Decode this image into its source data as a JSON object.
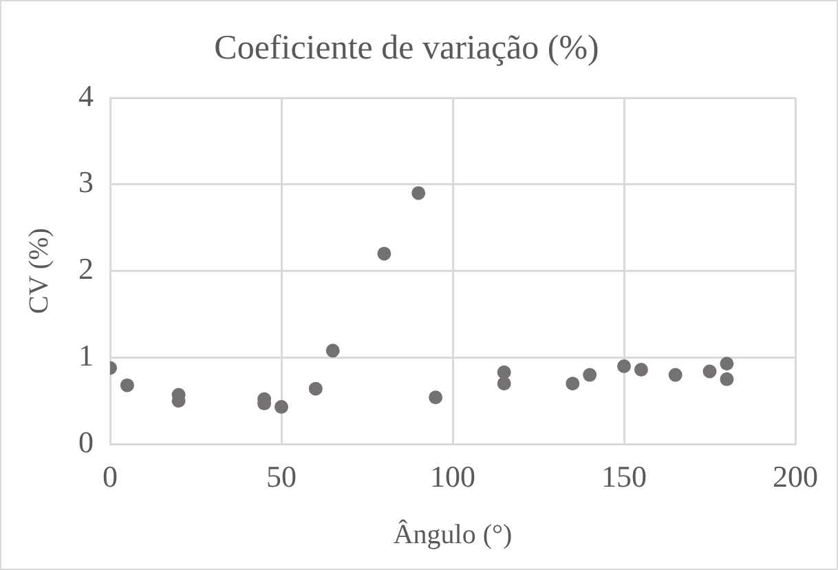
{
  "chart_data": {
    "type": "scatter",
    "title": "Coeficiente de variação (%)",
    "xlabel": "Ângulo (°)",
    "ylabel": "CV (%)",
    "x": [
      0,
      5,
      20,
      20,
      45,
      45,
      50,
      60,
      65,
      80,
      90,
      95,
      115,
      115,
      135,
      140,
      150,
      155,
      165,
      175,
      180,
      180
    ],
    "series": [
      {
        "color": "#767171",
        "values": [
          0.88,
          0.68,
          0.57,
          0.5,
          0.52,
          0.47,
          0.43,
          0.64,
          1.08,
          2.2,
          2.9,
          0.54,
          0.83,
          0.7,
          0.7,
          0.8,
          0.9,
          0.86,
          0.8,
          0.84,
          0.93,
          0.75
        ]
      }
    ],
    "xlim": [
      0,
      200
    ],
    "xticks": [
      0,
      50,
      100,
      150,
      200
    ],
    "ylim": [
      0,
      4
    ],
    "yticks": [
      0,
      1,
      2,
      3,
      4
    ],
    "grid": true,
    "legend": false,
    "marker": "circle"
  }
}
